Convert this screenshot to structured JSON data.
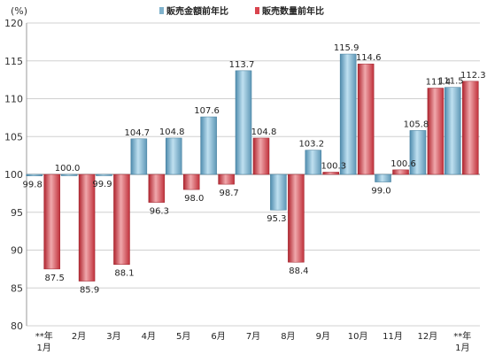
{
  "chart_data": {
    "type": "bar",
    "unit_label": "(%)",
    "categories": [
      [
        "**年",
        "1月"
      ],
      [
        "2月"
      ],
      [
        "3月"
      ],
      [
        "4月"
      ],
      [
        "5月"
      ],
      [
        "6月"
      ],
      [
        "7月"
      ],
      [
        "8月"
      ],
      [
        "9月"
      ],
      [
        "10月"
      ],
      [
        "11月"
      ],
      [
        "12月"
      ],
      [
        "**年",
        "1月"
      ]
    ],
    "series": [
      {
        "name": "販売金額前年比",
        "color": "#7fb2cc",
        "values": [
          99.8,
          100.0,
          99.9,
          104.7,
          104.8,
          107.6,
          113.7,
          95.3,
          103.2,
          115.9,
          99.0,
          105.8,
          111.5
        ],
        "labels": [
          "99.8",
          "100.0",
          "99.9",
          "104.7",
          "104.8",
          "107.6",
          "113.7",
          "95.3",
          "103.2",
          "115.9",
          "99.0",
          "105.8",
          "111.5"
        ]
      },
      {
        "name": "販売数量前年比",
        "color": "#d9444e",
        "values": [
          87.5,
          85.9,
          88.1,
          96.3,
          98.0,
          98.7,
          104.8,
          88.4,
          100.3,
          114.6,
          100.6,
          111.4,
          112.3
        ],
        "labels": [
          "87.5",
          "85.9",
          "88.1",
          "96.3",
          "98.0",
          "98.7",
          "104.8",
          "88.4",
          "100.3",
          "114.6",
          "100.6",
          "111.4",
          "112.3"
        ]
      }
    ],
    "baseline": 100,
    "ylim": [
      80,
      120
    ],
    "yticks": [
      80,
      85,
      90,
      95,
      100,
      105,
      110,
      115,
      120
    ],
    "grid": true,
    "legend": "top-center"
  }
}
